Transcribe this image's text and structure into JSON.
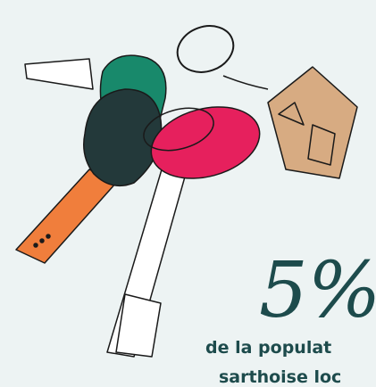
{
  "stat": {
    "figure": "5%",
    "caption": [
      "de la populat",
      "sarthoise loc"
    ]
  }
}
